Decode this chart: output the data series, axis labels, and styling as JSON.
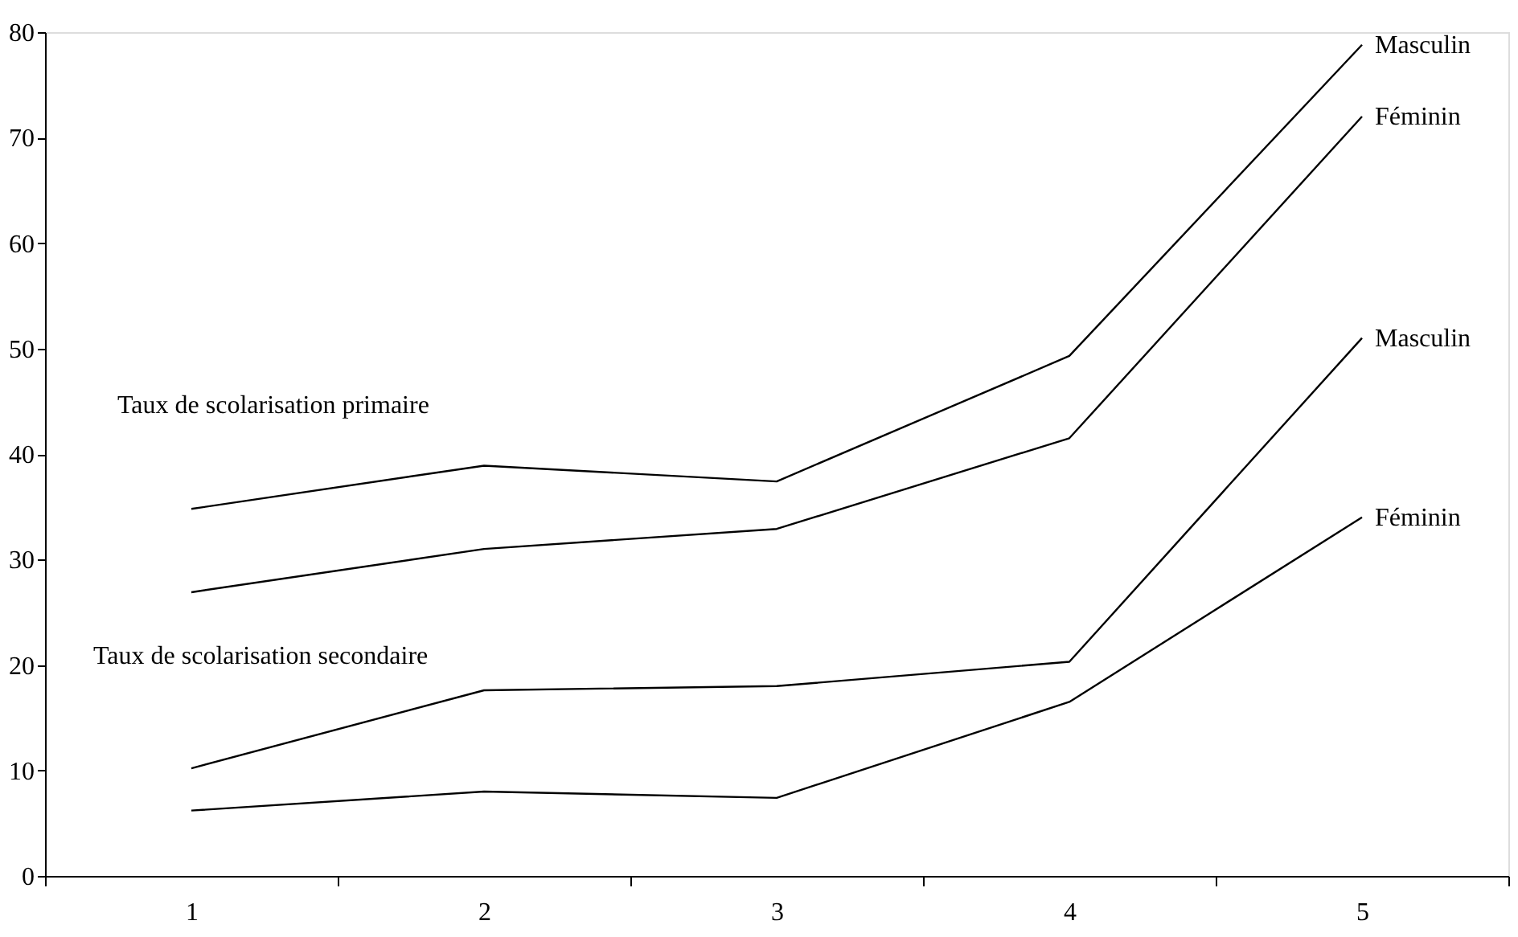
{
  "chart_data": {
    "type": "line",
    "categories": [
      "1",
      "2",
      "3",
      "4",
      "5"
    ],
    "series": [
      {
        "name": "Masculin",
        "color": "#000000",
        "values": [
          34.8,
          38.9,
          37.4,
          49.3,
          78.8
        ]
      },
      {
        "name": "Féminin",
        "color": "#000000",
        "values": [
          26.9,
          31.0,
          32.9,
          41.5,
          72.0
        ]
      },
      {
        "name": "Masculin",
        "color": "#000000",
        "values": [
          10.2,
          17.6,
          18.0,
          20.3,
          51.0
        ]
      },
      {
        "name": "Féminin",
        "color": "#000000",
        "values": [
          6.2,
          8.0,
          7.4,
          16.5,
          34.0
        ]
      }
    ],
    "annotations": [
      "Taux de scolarisation primaire",
      "Taux de scolarisation secondaire"
    ],
    "ylim": [
      0,
      80
    ],
    "yticks": [
      0,
      10,
      20,
      30,
      40,
      50,
      60,
      70,
      80
    ],
    "grid": false,
    "marker": "none",
    "line_style": "solid"
  }
}
